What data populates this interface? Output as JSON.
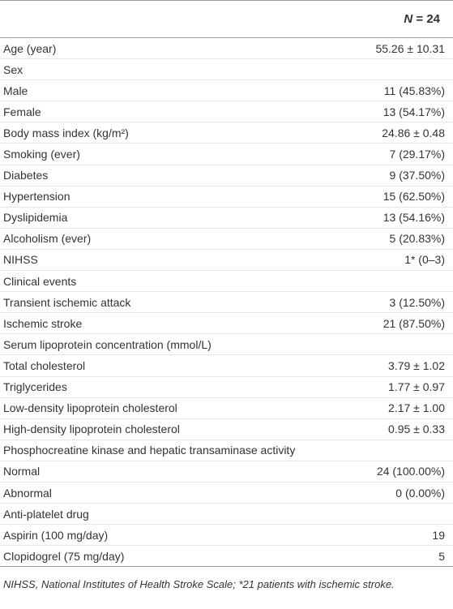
{
  "table": {
    "header": [
      "N",
      " = 24"
    ],
    "rows": [
      [
        "Age (year)",
        "55.26 ± 10.31"
      ],
      [
        "Sex",
        ""
      ],
      [
        "Male",
        "11 (45.83%)"
      ],
      [
        "Female",
        "13 (54.17%)"
      ],
      [
        "Body mass index (kg/m²)",
        "24.86 ± 0.48"
      ],
      [
        "Smoking (ever)",
        "7 (29.17%)"
      ],
      [
        "Diabetes",
        "9 (37.50%)"
      ],
      [
        "Hypertension",
        "15 (62.50%)"
      ],
      [
        "Dyslipidemia",
        "13 (54.16%)"
      ],
      [
        "Alcoholism (ever)",
        "5 (20.83%)"
      ],
      [
        "NIHSS",
        "1* (0–3)"
      ],
      [
        "Clinical events",
        ""
      ],
      [
        "Transient ischemic attack",
        "3 (12.50%)"
      ],
      [
        "Ischemic stroke",
        "21 (87.50%)"
      ],
      [
        "Serum lipoprotein concentration (mmol/L)",
        ""
      ],
      [
        "Total cholesterol",
        "3.79 ± 1.02"
      ],
      [
        "Triglycerides",
        "1.77 ± 0.97"
      ],
      [
        "Low-density lipoprotein cholesterol",
        "2.17 ± 1.00"
      ],
      [
        "High-density lipoprotein cholesterol",
        "0.95 ± 0.33"
      ],
      [
        "Phosphocreatine kinase and hepatic transaminase activity",
        ""
      ],
      [
        "Normal",
        "24 (100.00%)"
      ],
      [
        "Abnormal",
        "0 (0.00%)"
      ],
      [
        "Anti-platelet drug",
        ""
      ],
      [
        "Aspirin (100 mg/day)",
        "19"
      ],
      [
        "Clopidogrel (75 mg/day)",
        "5"
      ]
    ],
    "footnote": "NIHSS, National Institutes of Health Stroke Scale; *21 patients with ischemic stroke."
  }
}
